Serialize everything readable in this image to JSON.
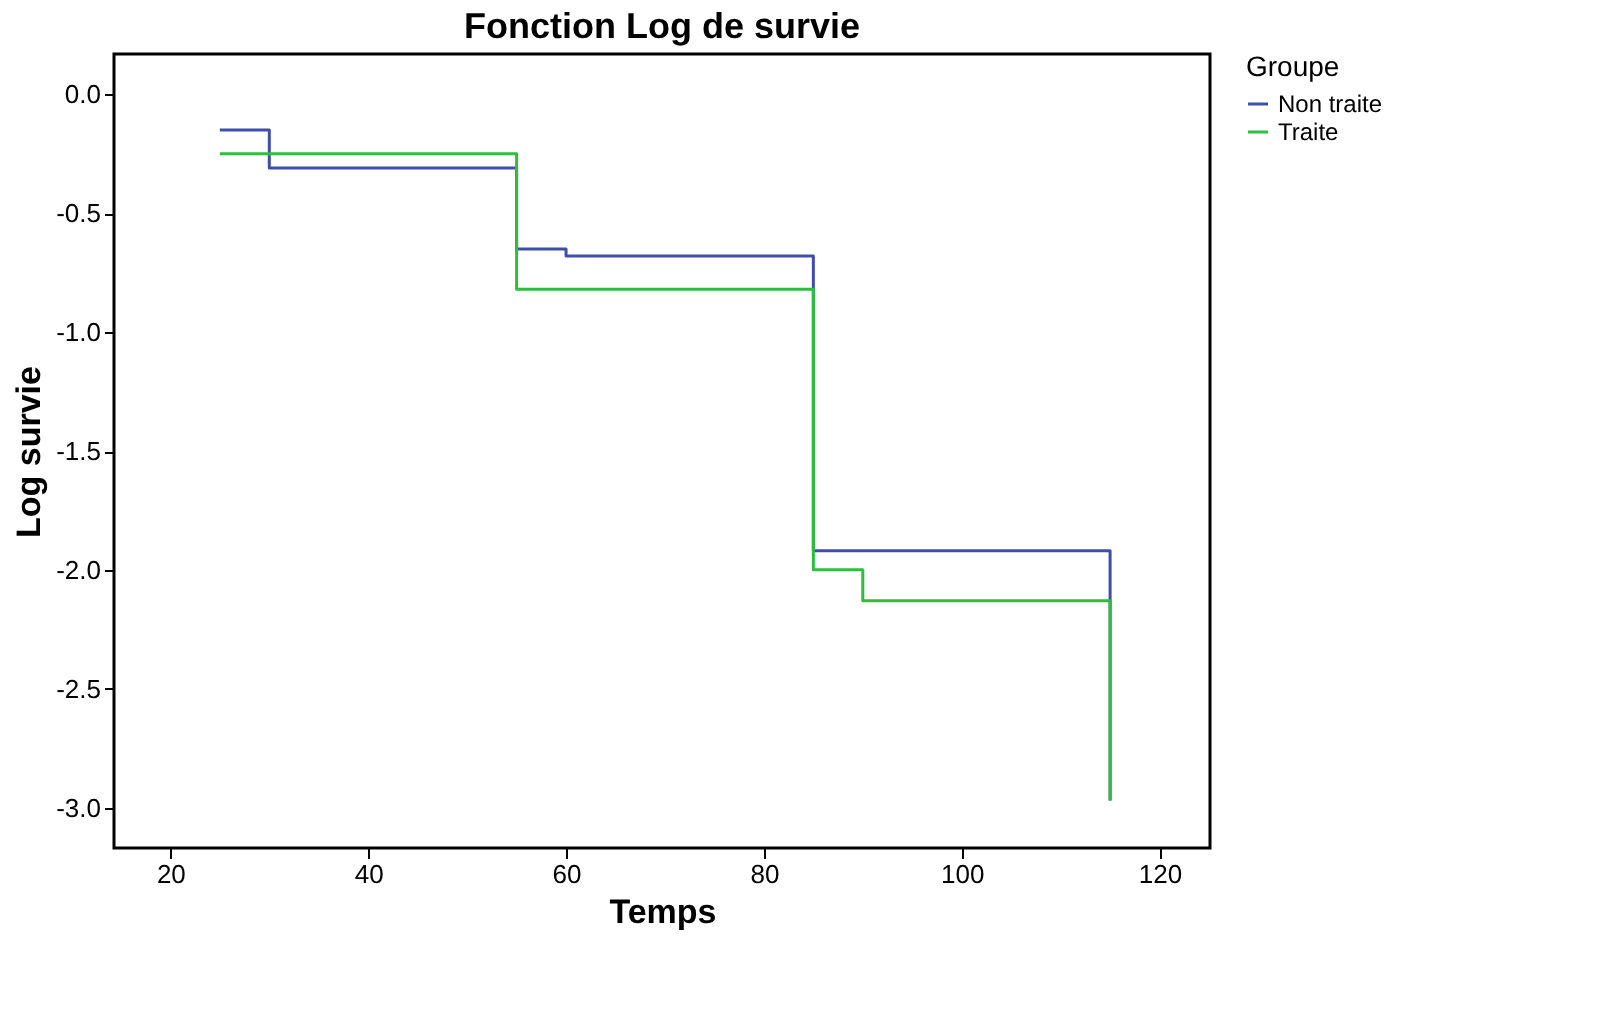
{
  "chart_data": {
    "type": "step",
    "title": "Fonction Log de survie",
    "xlabel": "Temps",
    "ylabel": "Log survie",
    "legend_title": "Groupe",
    "legend": "top right",
    "grid": false,
    "xlim": [
      14.3,
      125.1
    ],
    "xticks": [
      20,
      40,
      60,
      80,
      100,
      120
    ],
    "ylim": [
      -3.17,
      0.17
    ],
    "yticks": [
      {
        "value": 0,
        "label": "0.0"
      },
      -0.5,
      {
        "value": -1,
        "label": "-1.0"
      },
      -1.5,
      {
        "value": -2,
        "label": "-2.0"
      },
      -2.5,
      {
        "value": -3,
        "label": "-3.0"
      }
    ],
    "series": [
      {
        "name": "Non traite",
        "color": "#3f4fa8",
        "x": [
          25,
          30,
          55,
          60,
          85,
          115
        ],
        "values": [
          -0.15,
          -0.31,
          -0.65,
          -0.68,
          -1.92,
          -2.97
        ]
      },
      {
        "name": "Traite",
        "color": "#2ebd3c",
        "x": [
          25,
          55,
          85,
          90,
          115
        ],
        "values": [
          -0.25,
          -0.82,
          -2.0,
          -2.13,
          -2.97
        ]
      }
    ]
  }
}
